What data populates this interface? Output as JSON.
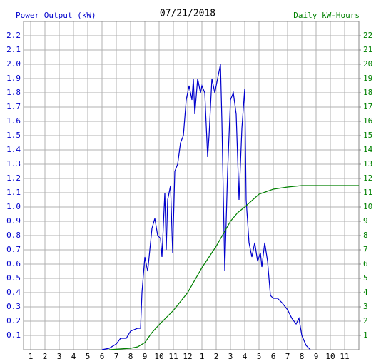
{
  "chart_data": {
    "type": "line",
    "title": "07/21/2018",
    "y_label": "Power Output (kW)",
    "y2_label": "Daily kW-Hours",
    "xlim": [
      0.5,
      24
    ],
    "xticks": [
      1,
      2,
      3,
      4,
      5,
      6,
      7,
      8,
      9,
      10,
      11,
      12,
      {
        "value": 13,
        "label": "1"
      },
      {
        "value": 14,
        "label": "2"
      },
      {
        "value": 15,
        "label": "3"
      },
      {
        "value": 16,
        "label": "4"
      },
      {
        "value": 17,
        "label": "5"
      },
      {
        "value": 18,
        "label": "6"
      },
      {
        "value": 19,
        "label": "7"
      },
      {
        "value": 20,
        "label": "8"
      },
      {
        "value": 21,
        "label": "9"
      },
      {
        "value": 22,
        "label": "10"
      },
      {
        "value": 23,
        "label": "11"
      }
    ],
    "ylim": [
      0,
      2.3
    ],
    "yticks": [
      0.1,
      0.2,
      0.3,
      0.4,
      0.5,
      0.6,
      0.7,
      0.8,
      0.9,
      {
        "value": 1,
        "label": "1.0"
      },
      1.1,
      1.2,
      1.3,
      1.4,
      1.5,
      1.6,
      1.7,
      1.8,
      1.9,
      {
        "value": 2,
        "label": "2.0"
      },
      2.1,
      2.2
    ],
    "y2lim": [
      0,
      23
    ],
    "y2ticks": [
      1,
      2,
      3,
      4,
      5,
      6,
      7,
      8,
      9,
      10,
      11,
      12,
      13,
      14,
      15,
      16,
      17,
      18,
      19,
      20,
      21,
      22
    ],
    "grid": true,
    "series": [
      {
        "name": "Power Output (kW)",
        "color": "#0000cc",
        "axis": "y",
        "x": [
          6.0,
          6.5,
          7.0,
          7.3,
          7.7,
          8.0,
          8.5,
          8.7,
          8.8,
          9.0,
          9.1,
          9.2,
          9.3,
          9.5,
          9.7,
          9.9,
          10.1,
          10.2,
          10.4,
          10.5,
          10.6,
          10.8,
          10.95,
          11.1,
          11.3,
          11.5,
          11.7,
          11.9,
          12.0,
          12.1,
          12.3,
          12.4,
          12.5,
          12.7,
          12.9,
          13.0,
          13.2,
          13.4,
          13.5,
          13.7,
          13.9,
          14.0,
          14.3,
          14.4,
          14.6,
          14.8,
          15.0,
          15.2,
          15.4,
          15.6,
          15.8,
          16.0,
          16.1,
          16.3,
          16.5,
          16.7,
          16.9,
          17.1,
          17.2,
          17.4,
          17.6,
          17.8,
          18.0,
          18.3,
          18.6,
          19.0,
          19.3,
          19.6,
          19.8,
          20.0,
          20.3,
          20.6
        ],
        "values": [
          0,
          0.01,
          0.04,
          0.08,
          0.08,
          0.13,
          0.15,
          0.15,
          0.4,
          0.65,
          0.6,
          0.55,
          0.65,
          0.85,
          0.92,
          0.8,
          0.78,
          0.65,
          1.1,
          0.7,
          1.05,
          1.15,
          0.68,
          1.25,
          1.3,
          1.45,
          1.5,
          1.75,
          1.8,
          1.85,
          1.75,
          1.9,
          1.65,
          1.9,
          1.8,
          1.85,
          1.8,
          1.35,
          1.5,
          1.9,
          1.8,
          1.85,
          2.0,
          1.6,
          0.55,
          1.25,
          1.75,
          1.8,
          1.65,
          1.05,
          1.55,
          1.83,
          1.05,
          0.75,
          0.65,
          0.75,
          0.62,
          0.68,
          0.58,
          0.75,
          0.62,
          0.38,
          0.36,
          0.36,
          0.33,
          0.28,
          0.22,
          0.18,
          0.22,
          0.1,
          0.03,
          0
        ]
      },
      {
        "name": "Daily kW-Hours",
        "color": "#008000",
        "axis": "y2",
        "x": [
          6.5,
          8.0,
          8.5,
          9.0,
          9.5,
          10.0,
          11.0,
          12.0,
          13.0,
          14.0,
          15.0,
          15.5,
          16.0,
          17.0,
          18.0,
          19.0,
          20.0,
          24.0
        ],
        "values": [
          0,
          0.1,
          0.2,
          0.5,
          1.2,
          1.75,
          2.75,
          4,
          5.75,
          7.25,
          9.0,
          9.6,
          10,
          10.9,
          11.25,
          11.4,
          11.5,
          11.5
        ]
      }
    ]
  }
}
